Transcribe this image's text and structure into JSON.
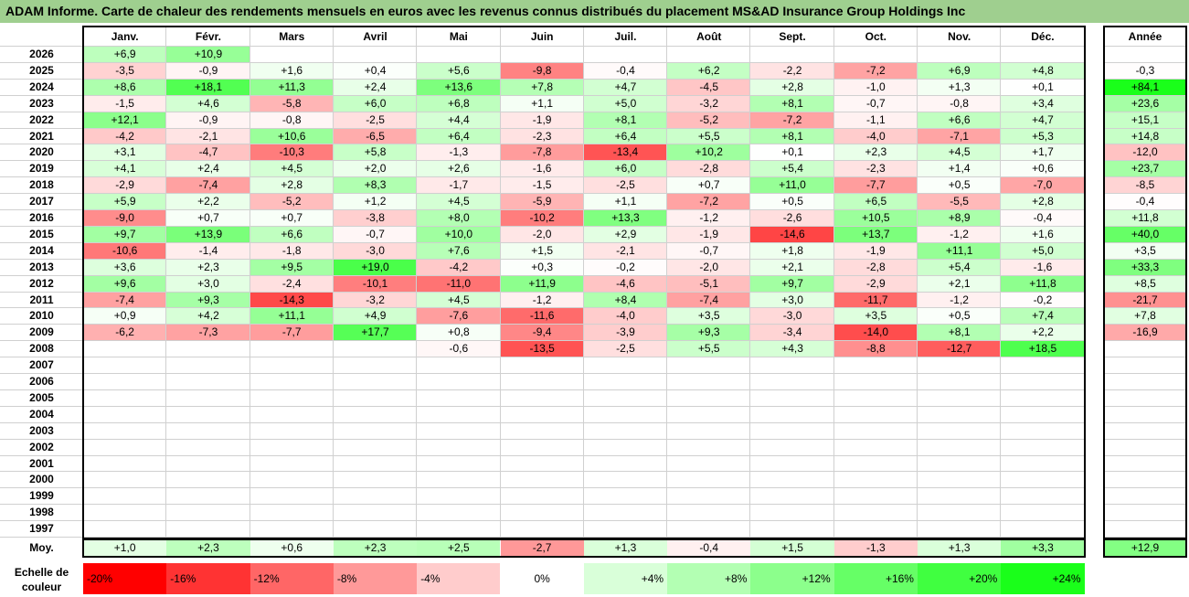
{
  "title": "ADAM Informe. Carte de chaleur des rendements mensuels en euros avec les revenus connus distribués du placement MS&AD Insurance Group Holdings Inc",
  "chart_data": {
    "type": "heatmap",
    "months": [
      "Janv.",
      "Févr.",
      "Mars",
      "Avril",
      "Mai",
      "Juin",
      "Juil.",
      "Août",
      "Sept.",
      "Oct.",
      "Nov.",
      "Déc."
    ],
    "annual_header": "Année",
    "rows": [
      {
        "year": "2026",
        "values": [
          "+6,9",
          "+10,9",
          "",
          "",
          "",
          "",
          "",
          "",
          "",
          "",
          "",
          ""
        ],
        "annual": ""
      },
      {
        "year": "2025",
        "values": [
          "-3,5",
          "-0,9",
          "+1,6",
          "+0,4",
          "+5,6",
          "-9,8",
          "-0,4",
          "+6,2",
          "-2,2",
          "-7,2",
          "+6,9",
          "+4,8"
        ],
        "annual": "-0,3"
      },
      {
        "year": "2024",
        "values": [
          "+8,6",
          "+18,1",
          "+11,3",
          "+2,4",
          "+13,6",
          "+7,8",
          "+4,7",
          "-4,5",
          "+2,8",
          "-1,0",
          "+1,3",
          "+0,1"
        ],
        "annual": "+84,1"
      },
      {
        "year": "2023",
        "values": [
          "-1,5",
          "+4,6",
          "-5,8",
          "+6,0",
          "+6,8",
          "+1,1",
          "+5,0",
          "-3,2",
          "+8,1",
          "-0,7",
          "-0,8",
          "+3,4"
        ],
        "annual": "+23,6"
      },
      {
        "year": "2022",
        "values": [
          "+12,1",
          "-0,9",
          "-0,8",
          "-2,5",
          "+4,4",
          "-1,9",
          "+8,1",
          "-5,2",
          "-7,2",
          "-1,1",
          "+6,6",
          "+4,7"
        ],
        "annual": "+15,1"
      },
      {
        "year": "2021",
        "values": [
          "-4,2",
          "-2,1",
          "+10,6",
          "-6,5",
          "+6,4",
          "-2,3",
          "+6,4",
          "+5,5",
          "+8,1",
          "-4,0",
          "-7,1",
          "+5,3"
        ],
        "annual": "+14,8"
      },
      {
        "year": "2020",
        "values": [
          "+3,1",
          "-4,7",
          "-10,3",
          "+5,8",
          "-1,3",
          "-7,8",
          "-13,4",
          "+10,2",
          "+0,1",
          "+2,3",
          "+4,5",
          "+1,7"
        ],
        "annual": "-12,0"
      },
      {
        "year": "2019",
        "values": [
          "+4,1",
          "+2,4",
          "+4,5",
          "+2,0",
          "+2,6",
          "-1,6",
          "+6,0",
          "-2,8",
          "+5,4",
          "-2,3",
          "+1,4",
          "+0,6"
        ],
        "annual": "+23,7"
      },
      {
        "year": "2018",
        "values": [
          "-2,9",
          "-7,4",
          "+2,8",
          "+8,3",
          "-1,7",
          "-1,5",
          "-2,5",
          "+0,7",
          "+11,0",
          "-7,7",
          "+0,5",
          "-7,0"
        ],
        "annual": "-8,5"
      },
      {
        "year": "2017",
        "values": [
          "+5,9",
          "+2,2",
          "-5,2",
          "+1,2",
          "+4,5",
          "-5,9",
          "+1,1",
          "-7,2",
          "+0,5",
          "+6,5",
          "-5,5",
          "+2,8"
        ],
        "annual": "-0,4"
      },
      {
        "year": "2016",
        "values": [
          "-9,0",
          "+0,7",
          "+0,7",
          "-3,8",
          "+8,0",
          "-10,2",
          "+13,3",
          "-1,2",
          "-2,6",
          "+10,5",
          "+8,9",
          "-0,4"
        ],
        "annual": "+11,8"
      },
      {
        "year": "2015",
        "values": [
          "+9,7",
          "+13,9",
          "+6,6",
          "-0,7",
          "+10,0",
          "-2,0",
          "+2,9",
          "-1,9",
          "-14,6",
          "+13,7",
          "-1,2",
          "+1,6"
        ],
        "annual": "+40,0"
      },
      {
        "year": "2014",
        "values": [
          "-10,6",
          "-1,4",
          "-1,8",
          "-3,0",
          "+7,6",
          "+1,5",
          "-2,1",
          "-0,7",
          "+1,8",
          "-1,9",
          "+11,1",
          "+5,0"
        ],
        "annual": "+3,5"
      },
      {
        "year": "2013",
        "values": [
          "+3,6",
          "+2,3",
          "+9,5",
          "+19,0",
          "-4,2",
          "+0,3",
          "-0,2",
          "-2,0",
          "+2,1",
          "-2,8",
          "+5,4",
          "-1,6"
        ],
        "annual": "+33,3"
      },
      {
        "year": "2012",
        "values": [
          "+9,6",
          "+3,0",
          "-2,4",
          "-10,1",
          "-11,0",
          "+11,9",
          "-4,6",
          "-5,1",
          "+9,7",
          "-2,9",
          "+2,1",
          "+11,8"
        ],
        "annual": "+8,5"
      },
      {
        "year": "2011",
        "values": [
          "-7,4",
          "+9,3",
          "-14,3",
          "-3,2",
          "+4,5",
          "-1,2",
          "+8,4",
          "-7,4",
          "+3,0",
          "-11,7",
          "-1,2",
          "-0,2"
        ],
        "annual": "-21,7"
      },
      {
        "year": "2010",
        "values": [
          "+0,9",
          "+4,2",
          "+11,1",
          "+4,9",
          "-7,6",
          "-11,6",
          "-4,0",
          "+3,5",
          "-3,0",
          "+3,5",
          "+0,5",
          "+7,4"
        ],
        "annual": "+7,8"
      },
      {
        "year": "2009",
        "values": [
          "-6,2",
          "-7,3",
          "-7,7",
          "+17,7",
          "+0,8",
          "-9,4",
          "-3,9",
          "+9,3",
          "-3,4",
          "-14,0",
          "+8,1",
          "+2,2"
        ],
        "annual": "-16,9"
      },
      {
        "year": "2008",
        "values": [
          "",
          "",
          "",
          "",
          "-0,6",
          "-13,5",
          "-2,5",
          "+5,5",
          "+4,3",
          "-8,8",
          "-12,7",
          "+18,5"
        ],
        "annual": ""
      },
      {
        "year": "2007",
        "values": [
          "",
          "",
          "",
          "",
          "",
          "",
          "",
          "",
          "",
          "",
          "",
          ""
        ],
        "annual": ""
      },
      {
        "year": "2006",
        "values": [
          "",
          "",
          "",
          "",
          "",
          "",
          "",
          "",
          "",
          "",
          "",
          ""
        ],
        "annual": ""
      },
      {
        "year": "2005",
        "values": [
          "",
          "",
          "",
          "",
          "",
          "",
          "",
          "",
          "",
          "",
          "",
          ""
        ],
        "annual": ""
      },
      {
        "year": "2004",
        "values": [
          "",
          "",
          "",
          "",
          "",
          "",
          "",
          "",
          "",
          "",
          "",
          ""
        ],
        "annual": ""
      },
      {
        "year": "2003",
        "values": [
          "",
          "",
          "",
          "",
          "",
          "",
          "",
          "",
          "",
          "",
          "",
          ""
        ],
        "annual": ""
      },
      {
        "year": "2002",
        "values": [
          "",
          "",
          "",
          "",
          "",
          "",
          "",
          "",
          "",
          "",
          "",
          ""
        ],
        "annual": ""
      },
      {
        "year": "2001",
        "values": [
          "",
          "",
          "",
          "",
          "",
          "",
          "",
          "",
          "",
          "",
          "",
          ""
        ],
        "annual": ""
      },
      {
        "year": "2000",
        "values": [
          "",
          "",
          "",
          "",
          "",
          "",
          "",
          "",
          "",
          "",
          "",
          ""
        ],
        "annual": ""
      },
      {
        "year": "1999",
        "values": [
          "",
          "",
          "",
          "",
          "",
          "",
          "",
          "",
          "",
          "",
          "",
          ""
        ],
        "annual": ""
      },
      {
        "year": "1998",
        "values": [
          "",
          "",
          "",
          "",
          "",
          "",
          "",
          "",
          "",
          "",
          "",
          ""
        ],
        "annual": ""
      },
      {
        "year": "1997",
        "values": [
          "",
          "",
          "",
          "",
          "",
          "",
          "",
          "",
          "",
          "",
          "",
          ""
        ],
        "annual": ""
      }
    ],
    "average": {
      "label": "Moy.",
      "values": [
        "+1,0",
        "+2,3",
        "+0,6",
        "+2,3",
        "+2,5",
        "-2,7",
        "+1,3",
        "-0,4",
        "+1,5",
        "-1,3",
        "+1,3",
        "+3,3"
      ],
      "annual": "+12,9"
    },
    "color_scale": {
      "label": "Echelle de couleur",
      "stops": [
        {
          "label": "-20%",
          "value": -20,
          "color": "#ff0000"
        },
        {
          "label": "-16%",
          "value": -16,
          "color": "#ff3333"
        },
        {
          "label": "-12%",
          "value": -12,
          "color": "#ff6666"
        },
        {
          "label": "-8%",
          "value": -8,
          "color": "#ff9999"
        },
        {
          "label": "-4%",
          "value": -4,
          "color": "#ffcccc"
        },
        {
          "label": "0%",
          "value": 0,
          "color": "#ffffff"
        },
        {
          "label": "+4%",
          "value": 4,
          "color": "#d9ffd9"
        },
        {
          "label": "+8%",
          "value": 8,
          "color": "#b3ffb3"
        },
        {
          "label": "+12%",
          "value": 12,
          "color": "#8cff8c"
        },
        {
          "label": "+16%",
          "value": 16,
          "color": "#66ff66"
        },
        {
          "label": "+20%",
          "value": 20,
          "color": "#40ff40"
        },
        {
          "label": "+24%",
          "value": 24,
          "color": "#1aff1a"
        }
      ]
    }
  }
}
